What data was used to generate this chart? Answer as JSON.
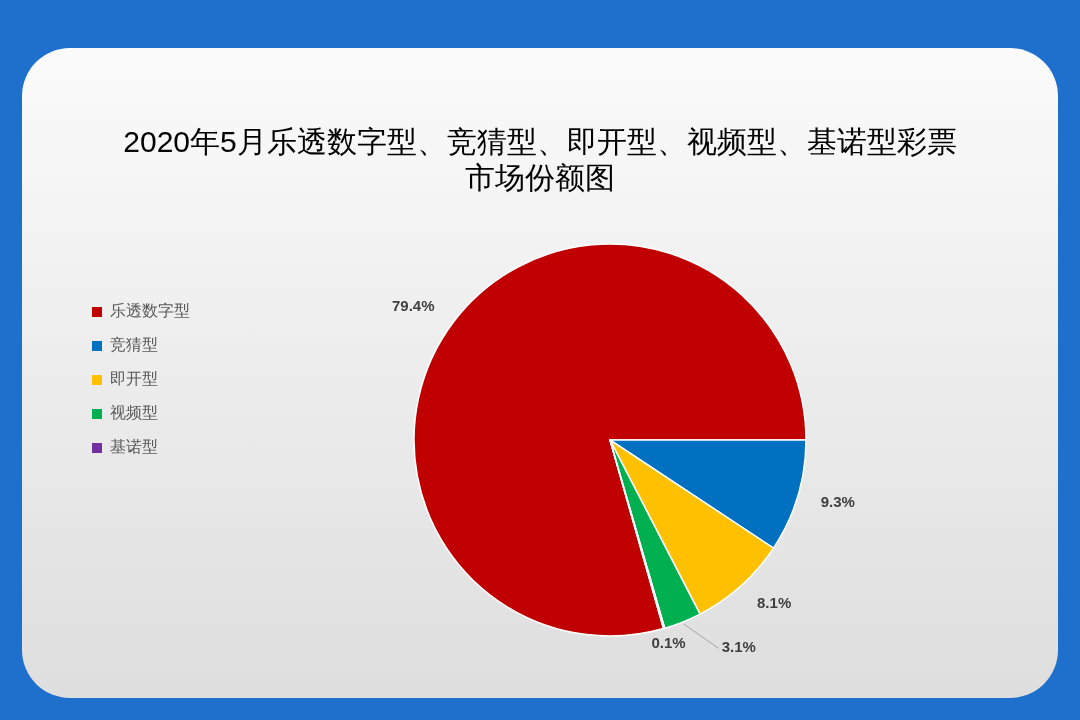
{
  "chart_data": {
    "type": "pie",
    "title": "2020年5月乐透数字型、竞猜型、即开型、视频型、基诺型彩票市场份额图",
    "categories": [
      "乐透数字型",
      "竞猜型",
      "即开型",
      "视频型",
      "基诺型"
    ],
    "values": [
      79.4,
      9.3,
      8.1,
      3.1,
      0.1
    ],
    "colors": [
      "#c00000",
      "#0070c0",
      "#ffc000",
      "#00b050",
      "#7030a0"
    ],
    "value_labels": [
      "79.4%",
      "9.3%",
      "8.1%",
      "3.1%",
      "0.1%"
    ],
    "legend": "left"
  }
}
